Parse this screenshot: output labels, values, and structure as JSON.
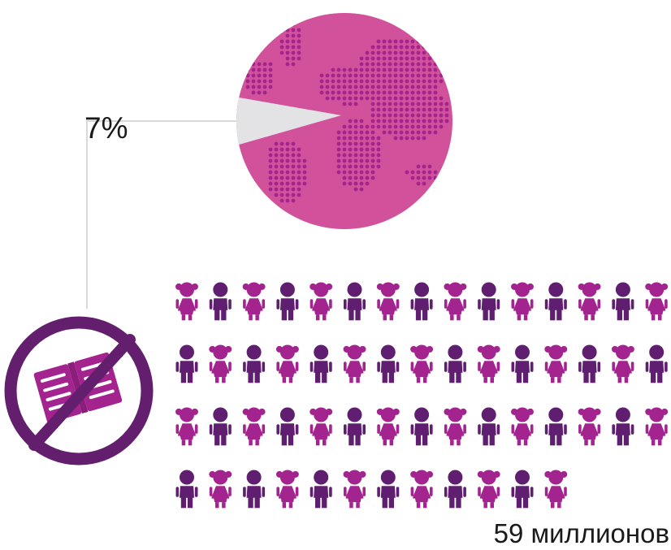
{
  "chart_data": {
    "type": "pie",
    "slices": [
      {
        "label": "7%",
        "value": 7,
        "color": "#e3e3e5"
      },
      {
        "value": 93,
        "color": "#d1519b"
      }
    ],
    "pictogram": {
      "total_figures": 57,
      "girl_color": "#a3248f",
      "boy_color": "#5f1e6f"
    }
  },
  "annotation": {
    "percent_label": "7%",
    "count_label": "59 миллионов"
  },
  "icons": {
    "no_books": "no-books-icon",
    "figure_girl": "girl-icon",
    "figure_boy": "boy-icon"
  },
  "colors": {
    "pie_main": "#d1519b",
    "pie_dots": "#a3248f",
    "slice": "#e3e3e5",
    "connector": "#d9d9d9",
    "icon_ring": "#631f6e"
  }
}
